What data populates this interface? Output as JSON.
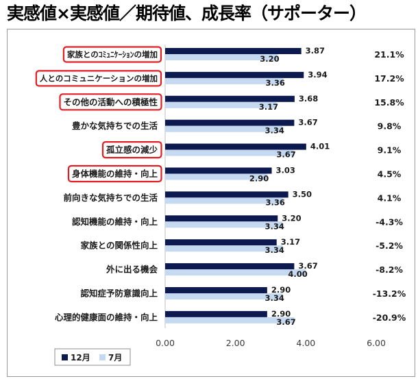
{
  "page": {
    "title": "実感値×実感値／期待値、成長率（サポーター）"
  },
  "colors": {
    "series_dec": "#0d1a4f",
    "series_jul": "#c5d9f1",
    "highlight_border": "#e31b23",
    "axis_line": "#bfbfbf"
  },
  "chart_data": {
    "type": "bar",
    "orientation": "horizontal",
    "title": "",
    "xlabel": "",
    "ylabel": "",
    "xlim": [
      0,
      6
    ],
    "x_ticks": [
      "0.00",
      "2.00",
      "4.00",
      "6.00"
    ],
    "x_tick_values": [
      0,
      2,
      4,
      6
    ],
    "grid": false,
    "legend_position": "bottom-left",
    "categories": [
      "家族とのｺﾐｭﾆｹｰｼｮﾝの増加",
      "人とのコミュニケーションの増加",
      "その他の活動への積極性",
      "豊かな気持ちでの生活",
      "孤立感の減少",
      "身体機能の維持・向上",
      "前向きな気持ちでの生活",
      "認知機能の維持・向上",
      "家族との関係性向上",
      "外に出る機会",
      "認知症予防意識向上",
      "心理的健康面の維持・向上"
    ],
    "highlighted_categories": [
      "家族とのｺﾐｭﾆｹｰｼｮﾝの増加",
      "人とのコミュニケーションの増加",
      "その他の活動への積極性",
      "孤立感の減少",
      "身体機能の維持・向上"
    ],
    "series": [
      {
        "name": "12月",
        "values": [
          3.87,
          3.94,
          3.68,
          3.67,
          4.01,
          3.03,
          3.5,
          3.2,
          3.17,
          3.67,
          2.9,
          2.9
        ],
        "value_labels": [
          "3.87",
          "3.94",
          "3.68",
          "3.67",
          "4.01",
          "3.03",
          "3.50",
          "3.20",
          "3.17",
          "3.67",
          "2.90",
          "2.90"
        ]
      },
      {
        "name": "7月",
        "values": [
          3.2,
          3.36,
          3.17,
          3.34,
          3.67,
          2.9,
          3.36,
          3.34,
          3.34,
          4.0,
          3.34,
          3.67
        ],
        "value_labels": [
          "3.20",
          "3.36",
          "3.17",
          "3.34",
          "3.67",
          "2.90",
          "3.36",
          "3.34",
          "3.34",
          "4.00",
          "3.34",
          "3.67"
        ]
      }
    ],
    "growth_rates": [
      "21.1%",
      "17.2%",
      "15.8%",
      "9.8%",
      "9.1%",
      "4.5%",
      "4.1%",
      "-4.3%",
      "-5.2%",
      "-8.2%",
      "-13.2%",
      "-20.9%"
    ]
  }
}
